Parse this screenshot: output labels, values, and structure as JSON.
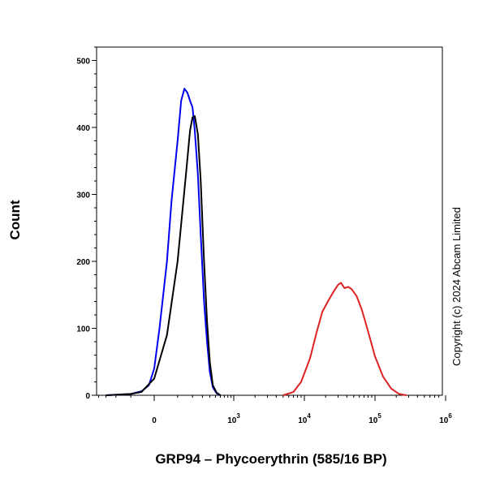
{
  "chart_data": {
    "type": "line",
    "xlabel": "GRP94 – Phycoerythrin (585/16 BP)",
    "ylabel": "Count",
    "x_scale": "biexponential",
    "xlim": [
      -1000,
      1000000
    ],
    "ylim": [
      0,
      520
    ],
    "grid": false,
    "legend": "none",
    "y_ticks": [
      0,
      100,
      200,
      300,
      400,
      500
    ],
    "x_ticks": [
      {
        "value": 0,
        "label": "0",
        "sup": ""
      },
      {
        "value": 1000,
        "label": "10",
        "sup": "3"
      },
      {
        "value": 10000,
        "label": "10",
        "sup": "4"
      },
      {
        "value": 100000,
        "label": "10",
        "sup": "5"
      },
      {
        "value": 1000000,
        "label": "10",
        "sup": "6"
      }
    ],
    "series": [
      {
        "color": "#0000ee",
        "points": [
          [
            -300,
            0
          ],
          [
            -100,
            2
          ],
          [
            -50,
            6
          ],
          [
            -20,
            15
          ],
          [
            0,
            40
          ],
          [
            20,
            100
          ],
          [
            50,
            200
          ],
          [
            70,
            290
          ],
          [
            100,
            380
          ],
          [
            120,
            440
          ],
          [
            140,
            458
          ],
          [
            160,
            452
          ],
          [
            180,
            440
          ],
          [
            200,
            430
          ],
          [
            220,
            395
          ],
          [
            250,
            330
          ],
          [
            280,
            240
          ],
          [
            320,
            140
          ],
          [
            360,
            80
          ],
          [
            400,
            35
          ],
          [
            450,
            12
          ],
          [
            520,
            3
          ],
          [
            600,
            0
          ]
        ]
      },
      {
        "color": "#000000",
        "points": [
          [
            -300,
            0
          ],
          [
            -100,
            2
          ],
          [
            -50,
            5
          ],
          [
            0,
            25
          ],
          [
            50,
            90
          ],
          [
            100,
            200
          ],
          [
            150,
            330
          ],
          [
            180,
            395
          ],
          [
            200,
            415
          ],
          [
            220,
            417
          ],
          [
            250,
            390
          ],
          [
            280,
            320
          ],
          [
            320,
            200
          ],
          [
            360,
            110
          ],
          [
            400,
            50
          ],
          [
            450,
            15
          ],
          [
            520,
            4
          ],
          [
            600,
            0
          ]
        ]
      },
      {
        "color": "#dd2222",
        "points": [
          [
            5000,
            0
          ],
          [
            7000,
            5
          ],
          [
            9000,
            20
          ],
          [
            12000,
            55
          ],
          [
            15000,
            95
          ],
          [
            18000,
            125
          ],
          [
            22000,
            142
          ],
          [
            26000,
            155
          ],
          [
            30000,
            165
          ],
          [
            33000,
            168
          ],
          [
            37000,
            160
          ],
          [
            42000,
            162
          ],
          [
            47000,
            158
          ],
          [
            55000,
            148
          ],
          [
            65000,
            128
          ],
          [
            80000,
            95
          ],
          [
            100000,
            58
          ],
          [
            130000,
            28
          ],
          [
            170000,
            10
          ],
          [
            220000,
            2
          ],
          [
            280000,
            0
          ]
        ]
      }
    ]
  },
  "copyright": "Copyright (c) 2024 Abcam Limited"
}
